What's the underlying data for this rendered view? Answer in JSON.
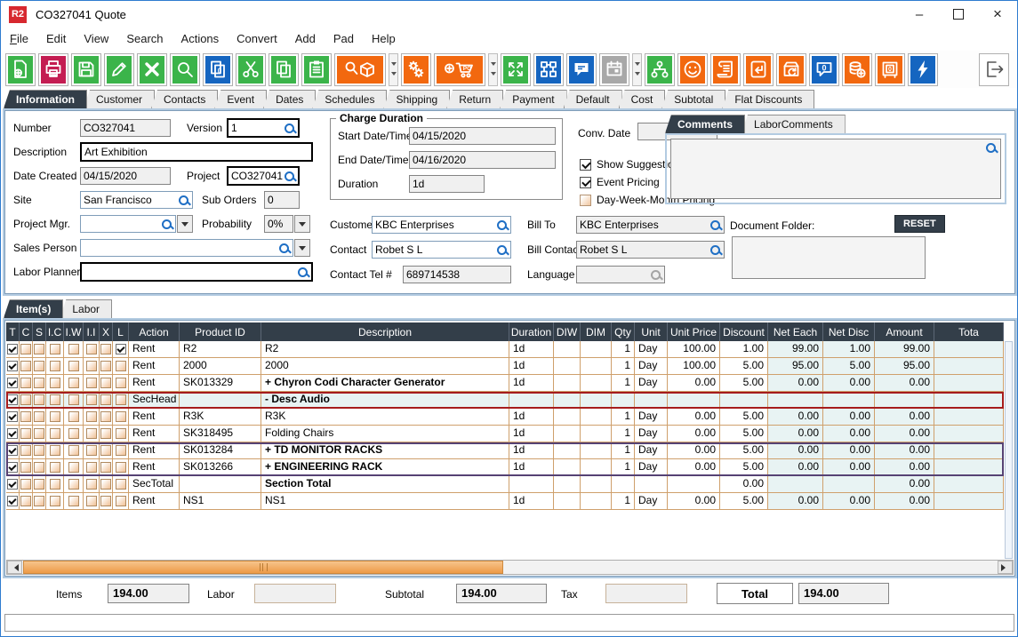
{
  "window": {
    "logo_text": "R2",
    "title": "CO327041 Quote",
    "minimize": "–",
    "close": "×"
  },
  "menu": [
    "File",
    "Edit",
    "View",
    "Search",
    "Actions",
    "Convert",
    "Add",
    "Pad",
    "Help"
  ],
  "toolbar": {
    "buttons": [
      {
        "name": "new-document",
        "color": "green"
      },
      {
        "name": "print",
        "color": "crimson"
      },
      {
        "name": "save",
        "color": "green"
      },
      {
        "name": "edit",
        "color": "green"
      },
      {
        "name": "delete",
        "color": "green"
      },
      {
        "name": "search",
        "color": "green"
      },
      {
        "name": "copy-zero",
        "color": "blue"
      },
      {
        "name": "cut",
        "color": "green"
      },
      {
        "name": "copy",
        "color": "green"
      },
      {
        "name": "paste",
        "color": "green"
      },
      {
        "name": "search-item",
        "color": "orange",
        "wide": true,
        "dropdown": true
      },
      {
        "name": "gears",
        "color": "orange"
      },
      {
        "name": "add-po",
        "color": "orange",
        "wide": true,
        "dropdown": true
      },
      {
        "name": "expand",
        "color": "green"
      },
      {
        "name": "workflow",
        "color": "blue"
      },
      {
        "name": "comment",
        "color": "blue"
      },
      {
        "name": "calendar",
        "color": "gray",
        "dropdown": true
      },
      {
        "name": "hierarchy",
        "color": "green"
      },
      {
        "name": "smiley",
        "color": "orange"
      },
      {
        "name": "receipt",
        "color": "orange"
      },
      {
        "name": "doc-return",
        "color": "orange"
      },
      {
        "name": "box-return",
        "color": "orange"
      },
      {
        "name": "speech-zero",
        "color": "blue"
      },
      {
        "name": "coins-add",
        "color": "orange"
      },
      {
        "name": "safe",
        "color": "orange"
      },
      {
        "name": "lightning",
        "color": "blue"
      },
      {
        "name": "exit",
        "color": "white",
        "right": true
      }
    ]
  },
  "main_tabs": {
    "active": "Information",
    "items": [
      "Information",
      "Customer",
      "Contacts",
      "Event",
      "Dates",
      "Schedules",
      "Shipping",
      "Return",
      "Payment",
      "Default",
      "Cost",
      "Subtotal",
      "Flat Discounts"
    ]
  },
  "form": {
    "number": {
      "label": "Number",
      "value": "CO327041"
    },
    "version": {
      "label": "Version",
      "value": "1"
    },
    "description": {
      "label": "Description",
      "value": "Art Exhibition"
    },
    "date_created": {
      "label": "Date Created",
      "value": "04/15/2020"
    },
    "project": {
      "label": "Project",
      "value": "CO327041"
    },
    "site": {
      "label": "Site",
      "value": "San Francisco"
    },
    "sub_orders": {
      "label": "Sub Orders",
      "value": "0"
    },
    "project_mgr": {
      "label": "Project Mgr.",
      "value": ""
    },
    "probability": {
      "label": "Probability",
      "value": "0%"
    },
    "sales_person": {
      "label": "Sales Person",
      "value": ""
    },
    "labor_planner": {
      "label": "Labor Planner",
      "value": ""
    },
    "charge_duration": {
      "title": "Charge Duration",
      "start": {
        "label": "Start Date/Time",
        "value": "04/15/2020"
      },
      "end": {
        "label": "End Date/Time",
        "value": "04/16/2020"
      },
      "duration": {
        "label": "Duration",
        "value": "1d"
      }
    },
    "conv_date": {
      "label": "Conv. Date",
      "value": ""
    },
    "checkboxes": [
      {
        "label": "Show Suggestions",
        "checked": true
      },
      {
        "label": "Event Pricing",
        "checked": true
      },
      {
        "label": "Day-Week-Month Pricing",
        "checked": false
      }
    ],
    "customer": {
      "label": "Customer",
      "value": "KBC Enterprises"
    },
    "bill_to": {
      "label": "Bill To",
      "value": "KBC Enterprises"
    },
    "contact": {
      "label": "Contact",
      "value": "Robet S L"
    },
    "bill_contact": {
      "label": "Bill Contact",
      "value": "Robet S L"
    },
    "contact_tel": {
      "label": "Contact Tel #",
      "value": "689714538"
    },
    "language": {
      "label": "Language",
      "value": ""
    }
  },
  "comments_panel": {
    "tabs": [
      "Comments",
      "LaborComments"
    ],
    "active": "Comments",
    "comment_text": "",
    "document_folder_label": "Document Folder:",
    "reset_label": "RESET",
    "document_folder_value": ""
  },
  "items_tabs": {
    "active": "Item(s)",
    "items": [
      "Item(s)",
      "Labor"
    ]
  },
  "grid": {
    "columns": [
      {
        "key": "t",
        "label": "T"
      },
      {
        "key": "c",
        "label": "C"
      },
      {
        "key": "s",
        "label": "S"
      },
      {
        "key": "ic",
        "label": "I.C"
      },
      {
        "key": "iw",
        "label": "I.W"
      },
      {
        "key": "ii",
        "label": "I.I"
      },
      {
        "key": "x",
        "label": "X"
      },
      {
        "key": "l",
        "label": "L"
      },
      {
        "key": "action",
        "label": "Action"
      },
      {
        "key": "product_id",
        "label": "Product ID"
      },
      {
        "key": "description",
        "label": "Description"
      },
      {
        "key": "duration",
        "label": "Duration"
      },
      {
        "key": "diw",
        "label": "DIW"
      },
      {
        "key": "dim",
        "label": "DIM"
      },
      {
        "key": "qty",
        "label": "Qty"
      },
      {
        "key": "unit",
        "label": "Unit"
      },
      {
        "key": "unit_price",
        "label": "Unit Price"
      },
      {
        "key": "discount",
        "label": "Discount"
      },
      {
        "key": "net_each",
        "label": "Net Each"
      },
      {
        "key": "net_disc",
        "label": "Net Disc"
      },
      {
        "key": "amount",
        "label": "Amount"
      },
      {
        "key": "total",
        "label": "Tota"
      }
    ],
    "rows": [
      {
        "t": 1,
        "c": 0,
        "s": 0,
        "ic": 0,
        "iw": 0,
        "ii": 0,
        "x": 0,
        "l": 1,
        "action": "Rent",
        "product_id": "R2",
        "description": "R2",
        "bold": false,
        "duration": "1d",
        "diw": "",
        "dim": "",
        "qty": "1",
        "unit": "Day",
        "unit_price": "100.00",
        "discount": "1.00",
        "net_each": "99.00",
        "net_disc": "1.00",
        "amount": "99.00",
        "total": "",
        "frame": "",
        "bg": ""
      },
      {
        "t": 1,
        "c": 0,
        "s": 0,
        "ic": 0,
        "iw": 0,
        "ii": 0,
        "x": 0,
        "l": 0,
        "action": "Rent",
        "product_id": "2000",
        "description": "2000",
        "bold": false,
        "duration": "1d",
        "diw": "",
        "dim": "",
        "qty": "1",
        "unit": "Day",
        "unit_price": "100.00",
        "discount": "5.00",
        "net_each": "95.00",
        "net_disc": "5.00",
        "amount": "95.00",
        "total": "",
        "frame": "",
        "bg": ""
      },
      {
        "t": 1,
        "c": 0,
        "s": 0,
        "ic": 0,
        "iw": 0,
        "ii": 0,
        "x": 0,
        "l": 0,
        "action": "Rent",
        "product_id": "SK013329",
        "description": "+  Chyron Codi Character Generator",
        "bold": true,
        "duration": "1d",
        "diw": "",
        "dim": "",
        "qty": "1",
        "unit": "Day",
        "unit_price": "0.00",
        "discount": "5.00",
        "net_each": "0.00",
        "net_disc": "0.00",
        "amount": "0.00",
        "total": "",
        "frame": "",
        "bg": ""
      },
      {
        "t": 1,
        "c": 0,
        "s": 0,
        "ic": 0,
        "iw": 0,
        "ii": 0,
        "x": 0,
        "l": 0,
        "action": "SecHead",
        "product_id": "",
        "description": "-  Desc Audio",
        "bold": true,
        "duration": "",
        "diw": "",
        "dim": "",
        "qty": "",
        "unit": "",
        "unit_price": "",
        "discount": "",
        "net_each": "",
        "net_disc": "",
        "amount": "",
        "total": "",
        "frame": "red",
        "bg": "cyan"
      },
      {
        "t": 1,
        "c": 0,
        "s": 0,
        "ic": 0,
        "iw": 0,
        "ii": 0,
        "x": 0,
        "l": 0,
        "action": "Rent",
        "product_id": "R3K",
        "description": "R3K",
        "bold": false,
        "duration": "1d",
        "diw": "",
        "dim": "",
        "qty": "1",
        "unit": "Day",
        "unit_price": "0.00",
        "discount": "5.00",
        "net_each": "0.00",
        "net_disc": "0.00",
        "amount": "0.00",
        "total": "",
        "frame": "",
        "bg": ""
      },
      {
        "t": 1,
        "c": 0,
        "s": 0,
        "ic": 0,
        "iw": 0,
        "ii": 0,
        "x": 0,
        "l": 0,
        "action": "Rent",
        "product_id": "SK318495",
        "description": "Folding Chairs",
        "bold": false,
        "duration": "1d",
        "diw": "",
        "dim": "",
        "qty": "1",
        "unit": "Day",
        "unit_price": "0.00",
        "discount": "5.00",
        "net_each": "0.00",
        "net_disc": "0.00",
        "amount": "0.00",
        "total": "",
        "frame": "",
        "bg": ""
      },
      {
        "t": 1,
        "c": 0,
        "s": 0,
        "ic": 0,
        "iw": 0,
        "ii": 0,
        "x": 0,
        "l": 0,
        "action": "Rent",
        "product_id": "SK013284",
        "description": "+  TD MONITOR RACKS",
        "bold": true,
        "duration": "1d",
        "diw": "",
        "dim": "",
        "qty": "1",
        "unit": "Day",
        "unit_price": "0.00",
        "discount": "5.00",
        "net_each": "0.00",
        "net_disc": "0.00",
        "amount": "0.00",
        "total": "",
        "frame": "purple-top",
        "bg": ""
      },
      {
        "t": 1,
        "c": 0,
        "s": 0,
        "ic": 0,
        "iw": 0,
        "ii": 0,
        "x": 0,
        "l": 0,
        "action": "Rent",
        "product_id": "SK013266",
        "description": "+  ENGINEERING RACK",
        "bold": true,
        "duration": "1d",
        "diw": "",
        "dim": "",
        "qty": "1",
        "unit": "Day",
        "unit_price": "0.00",
        "discount": "5.00",
        "net_each": "0.00",
        "net_disc": "0.00",
        "amount": "0.00",
        "total": "",
        "frame": "purple-bottom",
        "bg": ""
      },
      {
        "t": 1,
        "c": 0,
        "s": 0,
        "ic": 0,
        "iw": 0,
        "ii": 0,
        "x": 0,
        "l": 0,
        "action": "SecTotal",
        "product_id": "",
        "description": "Section Total",
        "bold": true,
        "duration": "",
        "diw": "",
        "dim": "",
        "qty": "",
        "unit": "",
        "unit_price": "",
        "discount": "0.00",
        "net_each": "",
        "net_disc": "",
        "amount": "0.00",
        "total": "",
        "frame": "",
        "bg": ""
      },
      {
        "t": 1,
        "c": 0,
        "s": 0,
        "ic": 0,
        "iw": 0,
        "ii": 0,
        "x": 0,
        "l": 0,
        "action": "Rent",
        "product_id": "NS1",
        "description": "NS1",
        "bold": false,
        "duration": "1d",
        "diw": "",
        "dim": "",
        "qty": "1",
        "unit": "Day",
        "unit_price": "0.00",
        "discount": "5.00",
        "net_each": "0.00",
        "net_disc": "0.00",
        "amount": "0.00",
        "total": "",
        "frame": "",
        "bg": ""
      }
    ]
  },
  "totals": {
    "items_label": "Items",
    "items_value": "194.00",
    "labor_label": "Labor",
    "labor_value": "",
    "subtotal_label": "Subtotal",
    "subtotal_value": "194.00",
    "tax_label": "Tax",
    "tax_value": "",
    "total_label": "Total",
    "total_value": "194.00"
  },
  "colors": {
    "accent_orange": "#f2680f",
    "accent_green": "#3bb44a",
    "accent_blue": "#1565c0",
    "accent_crimson": "#c41d52",
    "header_dark": "#333e49",
    "highlight_red": "#a61c1c",
    "highlight_purple": "#564274",
    "scroll_thumb": "#ee9b48"
  }
}
